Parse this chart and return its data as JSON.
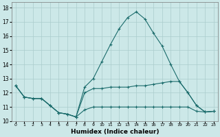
{
  "background_color": "#cce8e8",
  "grid_color": "#aacccc",
  "line_color": "#1a6b6b",
  "xlabel": "Humidex (Indice chaleur)",
  "ylim": [
    10,
    18.4
  ],
  "yticks": [
    10,
    11,
    12,
    13,
    14,
    15,
    16,
    17,
    18
  ],
  "xlim": [
    -0.5,
    23.5
  ],
  "line_peak": [
    12.5,
    11.7,
    11.6,
    11.6,
    11.1,
    10.6,
    10.5,
    10.3,
    12.4,
    13.0,
    14.2,
    15.4,
    16.5,
    17.3,
    17.7,
    17.2,
    16.2,
    15.3,
    14.0,
    12.8,
    12.0,
    11.1,
    10.65,
    10.7
  ],
  "line_mid": [
    12.5,
    11.7,
    11.6,
    11.6,
    11.1,
    10.6,
    10.5,
    10.3,
    12.0,
    12.3,
    12.3,
    12.4,
    12.4,
    12.4,
    12.5,
    12.5,
    12.6,
    12.7,
    12.8,
    12.8,
    12.0,
    11.1,
    10.65,
    10.7
  ],
  "line_low": [
    12.5,
    11.7,
    11.6,
    11.6,
    11.1,
    10.6,
    10.5,
    10.3,
    10.8,
    11.0,
    11.0,
    11.0,
    11.0,
    11.0,
    11.0,
    11.0,
    11.0,
    11.0,
    11.0,
    11.0,
    11.0,
    10.7,
    10.65,
    10.7
  ]
}
